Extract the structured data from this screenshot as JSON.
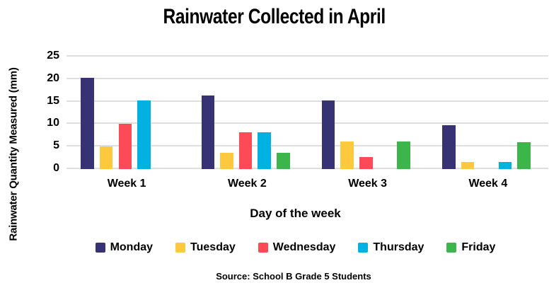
{
  "source": {
    "note": "Source: School B Grade 5 Students"
  },
  "layout_colors": {
    "gridline": "#dedede",
    "text": "#000000",
    "background": "#ffffff"
  },
  "chart_data": {
    "type": "bar",
    "title": "Rainwater Collected in April",
    "xlabel": "Day of the week",
    "ylabel": "Rainwater Quantity Measured (mm)",
    "categories": [
      "Week 1",
      "Week 2",
      "Week 3",
      "Week 4"
    ],
    "series": [
      {
        "name": "Monday",
        "color": "#363273",
        "values": [
          20,
          16.1,
          15,
          9.7
        ]
      },
      {
        "name": "Tuesday",
        "color": "#fec93f",
        "values": [
          5,
          3.6,
          6.1,
          1.6
        ]
      },
      {
        "name": "Wednesday",
        "color": "#fd4a57",
        "values": [
          10,
          8.1,
          2.6,
          0
        ]
      },
      {
        "name": "Thursday",
        "color": "#00b1e2",
        "values": [
          15,
          8.1,
          0,
          1.6
        ]
      },
      {
        "name": "Friday",
        "color": "#3cb54a",
        "values": [
          0,
          3.6,
          6.1,
          5.9
        ]
      }
    ],
    "ylim": [
      0,
      25
    ],
    "yticks": [
      0,
      5,
      10,
      15,
      20,
      25
    ],
    "grid": true,
    "legend_position": "bottom"
  }
}
